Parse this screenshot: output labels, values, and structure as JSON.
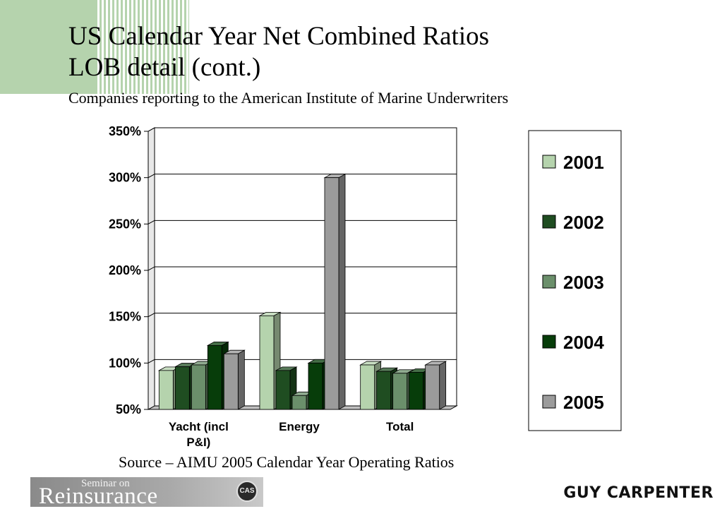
{
  "slide": {
    "title_line1": "US Calendar Year Net Combined Ratios",
    "title_line2": "LOB detail (cont.)",
    "subtitle": "Companies reporting to the American Institute of  Marine Underwriters",
    "source": "Source – AIMU 2005 Calendar Year  Operating Ratios"
  },
  "footer": {
    "seminar_small": "Seminar on",
    "seminar_big": "Reinsurance",
    "seal_text": "CAS",
    "brand": "GUY CARPENTER"
  },
  "colors": {
    "corner_block": "#b5d3ad"
  },
  "chart_data": {
    "type": "bar",
    "title": "",
    "xlabel": "",
    "ylabel": "",
    "ylim": [
      50,
      350
    ],
    "yticks": [
      50,
      100,
      150,
      200,
      250,
      300,
      350
    ],
    "ytick_labels": [
      "50%",
      "100%",
      "150%",
      "200%",
      "250%",
      "300%",
      "350%"
    ],
    "grid": true,
    "legend_position": "right",
    "categories": [
      "Yacht (incl P&I)",
      "Energy",
      "Total"
    ],
    "category_label_lines": [
      [
        "Yacht (incl",
        "P&I)"
      ],
      [
        "Energy"
      ],
      [
        "Total"
      ]
    ],
    "series": [
      {
        "name": "2001",
        "color": "#b5d3ad",
        "values": [
          92,
          151,
          98
        ]
      },
      {
        "name": "2002",
        "color": "#1f4d21",
        "values": [
          96,
          92,
          91
        ]
      },
      {
        "name": "2003",
        "color": "#6b8f6b",
        "values": [
          98,
          65,
          89
        ]
      },
      {
        "name": "2004",
        "color": "#073d0a",
        "values": [
          119,
          100,
          90
        ]
      },
      {
        "name": "2005",
        "color": "#9b9b9b",
        "values": [
          110,
          300,
          98
        ]
      }
    ]
  }
}
